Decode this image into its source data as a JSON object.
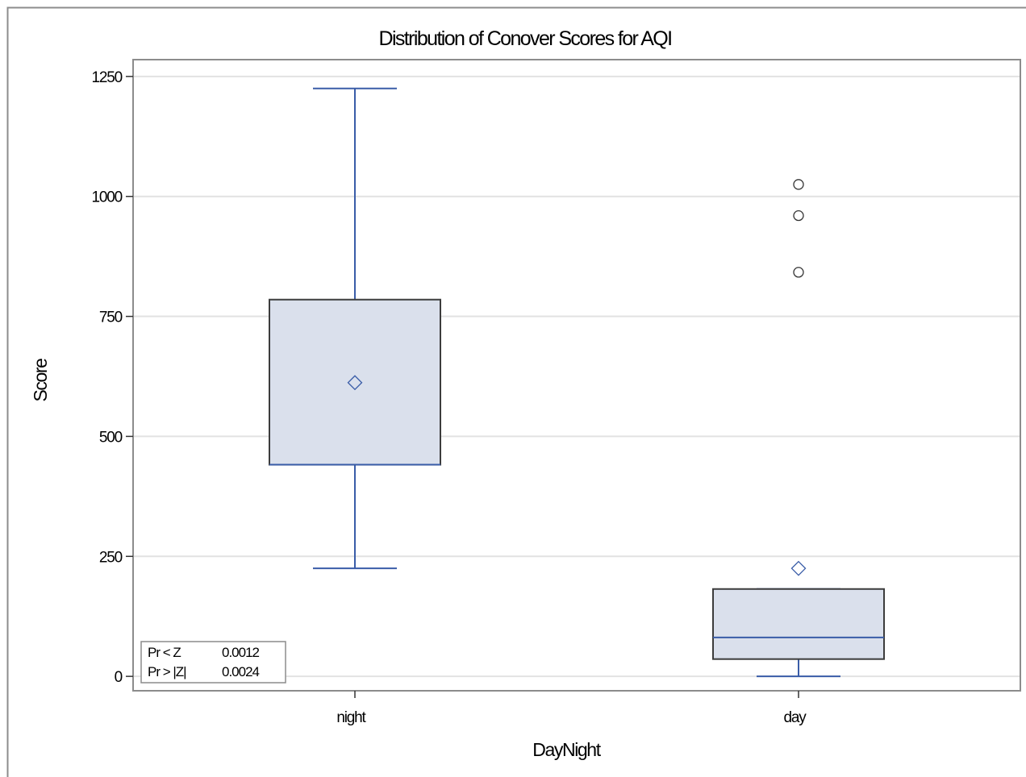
{
  "chart_data": {
    "type": "boxplot",
    "title": "Distribution of Conover Scores for AQI",
    "xlabel": "DayNight",
    "ylabel": "Score",
    "ylim": [
      -30,
      1285
    ],
    "yticks": [
      0,
      250,
      500,
      750,
      1000,
      1250
    ],
    "grid": true,
    "categories": [
      "night",
      "day"
    ],
    "boxes": [
      {
        "category": "night",
        "whisker_low": 225,
        "q1": 441,
        "median": 441,
        "q3": 785,
        "whisker_high": 1225,
        "mean": 612,
        "outliers": []
      },
      {
        "category": "day",
        "whisker_low": 0,
        "q1": 36,
        "median": 81,
        "q3": 182,
        "whisker_high": 182,
        "mean": 225,
        "outliers": [
          1025,
          960,
          842
        ]
      }
    ],
    "inset": {
      "placement": "bottom-left",
      "rows": [
        {
          "label": "Pr < Z",
          "value": "0.0012"
        },
        {
          "label": "Pr > |Z|",
          "value": "0.0024"
        }
      ]
    },
    "colors": {
      "box_fill": "#dae0ec",
      "box_border": "#3c3c3c",
      "whisker": "#3a5da8",
      "median": "#3a5da8",
      "mean_marker": "#3a5da8",
      "outlier": "#333333",
      "grid": "#e2e2e2",
      "frame": "#8c8c8c"
    }
  }
}
